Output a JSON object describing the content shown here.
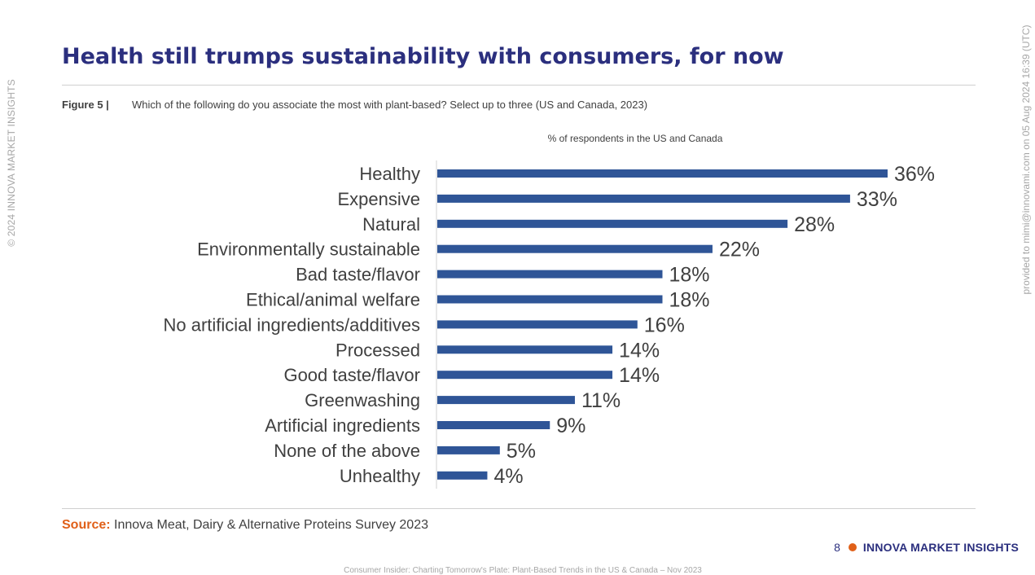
{
  "watermark_left": "© 2024 INNOVA MARKET INSIGHTS",
  "watermark_right": "provided to mimi@innovami.com on 05 Aug 2024 16:39 (UTC)",
  "title": "Health still trumps sustainability with consumers, for now",
  "figure": {
    "label": "Figure 5 |",
    "caption": "Which of the following do you associate the most with plant-based? Select up to three (US and Canada, 2023)"
  },
  "chart_data": {
    "type": "bar",
    "orientation": "horizontal",
    "title": "% of respondents in the US and Canada",
    "categories": [
      "Healthy",
      "Expensive",
      "Natural",
      "Environmentally sustainable",
      "Bad taste/flavor",
      "Ethical/animal welfare",
      "No artificial ingredients/additives",
      "Processed",
      "Good taste/flavor",
      "Greenwashing",
      "Artificial ingredients",
      "None of the above",
      "Unhealthy"
    ],
    "values": [
      36,
      33,
      28,
      22,
      18,
      18,
      16,
      14,
      14,
      11,
      9,
      5,
      4
    ],
    "value_labels": [
      "36%",
      "33%",
      "28%",
      "22%",
      "18%",
      "18%",
      "16%",
      "14%",
      "14%",
      "11%",
      "9%",
      "5%",
      "4%"
    ],
    "unit": "%",
    "xlim": [
      0,
      36
    ],
    "bar_color": "#2f5597",
    "grid": false,
    "legend": "none"
  },
  "source": {
    "label": "Source:",
    "text": " Innova Meat, Dairy & Alternative Proteins Survey 2023"
  },
  "footer": {
    "page_number": "8",
    "brand": "INNOVA MARKET INSIGHTS",
    "report_title": "Consumer Insider: Charting Tomorrow's Plate: Plant-Based Trends in the US & Canada – Nov 2023"
  },
  "colors": {
    "title": "#2b2f7e",
    "accent": "#e06019",
    "bar": "#2f5597"
  }
}
